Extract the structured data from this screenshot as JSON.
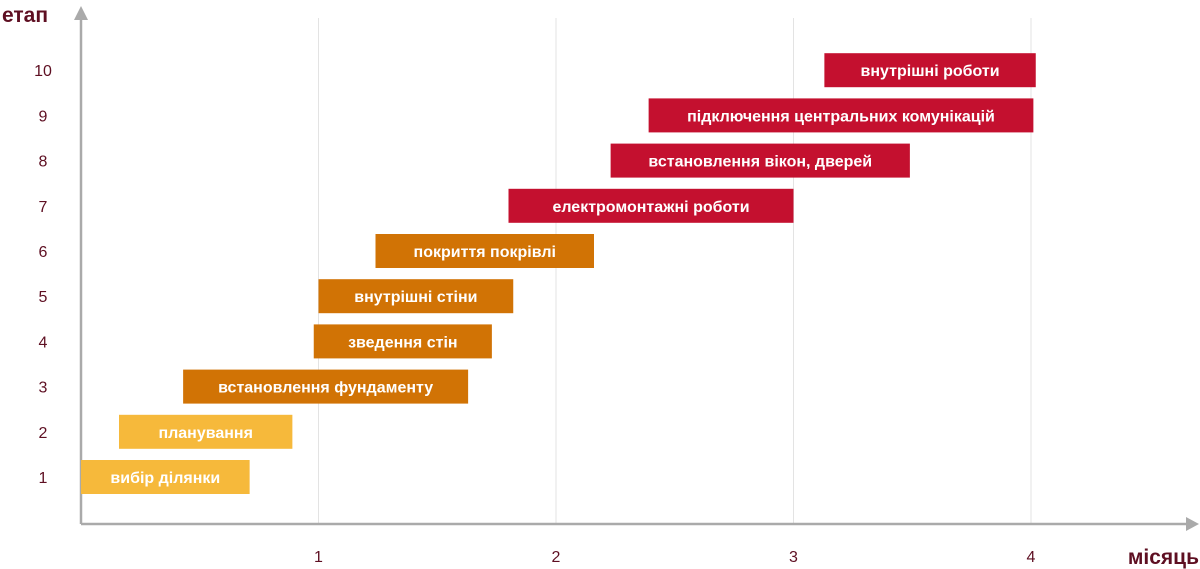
{
  "chart_data": {
    "type": "bar",
    "orientation": "horizontal-gantt",
    "xlabel": "місяць",
    "ylabel": "етап",
    "xlim": [
      0,
      4.7
    ],
    "ylim": [
      0,
      10.8
    ],
    "x_ticks": [
      "1",
      "2",
      "3",
      "4"
    ],
    "y_ticks": [
      "1",
      "2",
      "3",
      "4",
      "5",
      "6",
      "7",
      "8",
      "9",
      "10"
    ],
    "grid": "vertical lines at each month",
    "tasks": [
      {
        "stage": 1,
        "label": "вибір ділянки",
        "start": 0.0,
        "end": 0.71,
        "color": "#f6b93b"
      },
      {
        "stage": 2,
        "label": "планування",
        "start": 0.16,
        "end": 0.89,
        "color": "#f6b93b"
      },
      {
        "stage": 3,
        "label": "встановлення фундаменту",
        "start": 0.43,
        "end": 1.63,
        "color": "#d17305"
      },
      {
        "stage": 4,
        "label": "зведення стін",
        "start": 0.98,
        "end": 1.73,
        "color": "#d17305"
      },
      {
        "stage": 5,
        "label": "внутрішні стіни",
        "start": 1.0,
        "end": 1.82,
        "color": "#d17305"
      },
      {
        "stage": 6,
        "label": "покриття покрівлі",
        "start": 1.24,
        "end": 2.16,
        "color": "#d17305"
      },
      {
        "stage": 7,
        "label": "електромонтажні роботи",
        "start": 1.8,
        "end": 3.0,
        "color": "#c4102f"
      },
      {
        "stage": 8,
        "label": "встановлення вікон, дверей",
        "start": 2.23,
        "end": 3.49,
        "color": "#c4102f"
      },
      {
        "stage": 9,
        "label": "підключення центральних комунікацій",
        "start": 2.39,
        "end": 4.01,
        "color": "#c4102f"
      },
      {
        "stage": 10,
        "label": "внутрішні роботи",
        "start": 3.13,
        "end": 4.02,
        "color": "#c4102f"
      }
    ],
    "colors": {
      "axis": "#aaaaaa",
      "grid": "#e3e3e3",
      "label_text": "#5e0f22"
    }
  }
}
